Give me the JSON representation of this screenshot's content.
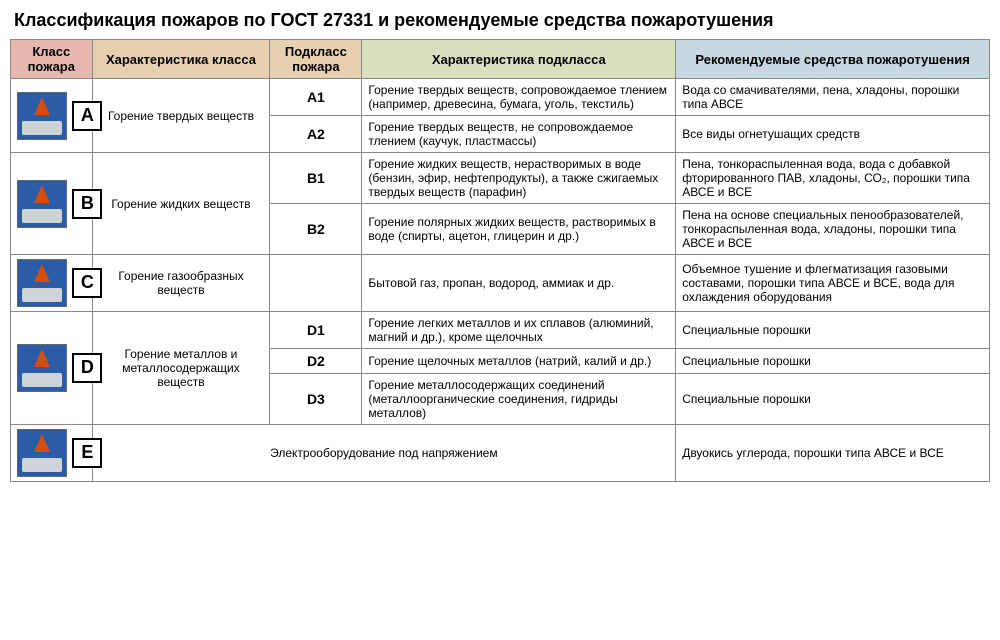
{
  "title": "Классификация пожаров по ГОСТ 27331 и рекомендуемые средства пожаротушения",
  "headers": {
    "class": "Класс пожара",
    "char": "Характеристика класса",
    "sub": "Подкласс пожара",
    "subchar": "Характеристика подкласса",
    "rec": "Рекомендуемые средства пожаротушения"
  },
  "colors": {
    "hdr_class": "#e6b8b0",
    "hdr_char": "#e6d0b0",
    "hdr_sub": "#e6d0b0",
    "hdr_subchar": "#d8e0c0",
    "hdr_rec": "#c8d8e0",
    "icon_bg": "#2b5ca8",
    "flame": "#d64d0d"
  },
  "rows": {
    "A": {
      "letter": "A",
      "char": "Горение твердых веществ",
      "subs": [
        {
          "sub": "А1",
          "subchar": "Горение твердых веществ, сопровождаемое тлением (например, древесина, бумага, уголь, текстиль)",
          "rec": "Вода со смачивателями, пена, хладоны, порошки типа АВСЕ"
        },
        {
          "sub": "А2",
          "subchar": "Горение твердых веществ, не сопровождаемое тлением (каучук, пластмассы)",
          "rec": "Все виды огнетушащих средств"
        }
      ]
    },
    "B": {
      "letter": "B",
      "char": "Горение жидких веществ",
      "subs": [
        {
          "sub": "В1",
          "subchar": "Горение жидких веществ, нерастворимых в воде (бензин, эфир, нефтепродукты), а также сжигаемых твердых веществ (парафин)",
          "rec": "Пена, тонкораспыленная вода, вода с добавкой фторированного ПАВ, хладоны, СО₂, порошки типа АВСЕ и ВСЕ"
        },
        {
          "sub": "В2",
          "subchar": "Горение полярных жидких веществ, растворимых в воде (спирты, ацетон, глицерин и др.)",
          "rec": "Пена на основе специальных пенообразователей, тонкораспыленная вода, хладоны, порошки типа АВСЕ и ВСЕ"
        }
      ]
    },
    "C": {
      "letter": "C",
      "char": "Горение газообразных веществ",
      "subchar": "Бытовой газ, пропан, водород, аммиак и др.",
      "rec": "Объемное тушение и флегматизация газовыми составами, порошки типа АВСЕ и ВСЕ, вода для охлаждения оборудования"
    },
    "D": {
      "letter": "D",
      "char": "Горение металлов и металлосодержащих веществ",
      "subs": [
        {
          "sub": "D1",
          "subchar": "Горение легких металлов и их сплавов (алюминий, магний и др.), кроме щелочных",
          "rec": "Специальные порошки"
        },
        {
          "sub": "D2",
          "subchar": "Горение щелочных металлов (натрий, калий и др.)",
          "rec": "Специальные порошки"
        },
        {
          "sub": "D3",
          "subchar": "Горение металлосодержащих соединений (металлоорганические соединения, гидриды металлов)",
          "rec": "Специальные порошки"
        }
      ]
    },
    "E": {
      "letter": "E",
      "char": "Электрооборудование под напряжением",
      "rec": "Двуокись углерода, порошки типа АВСЕ и ВСЕ"
    }
  }
}
